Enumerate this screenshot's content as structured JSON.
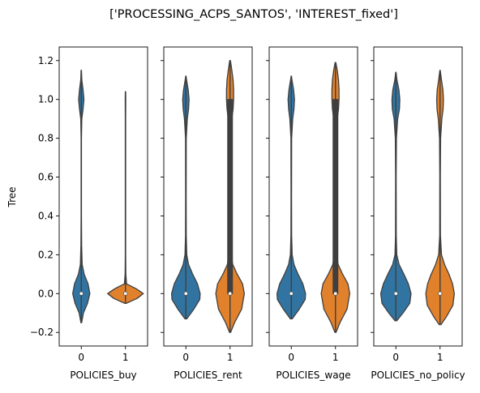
{
  "chart_data": {
    "type": "violin",
    "title": "['PROCESSING_ACPS_SANTOS', 'INTEREST_fixed']",
    "ylabel": "Tree",
    "ylim": [
      -0.27,
      1.27
    ],
    "yticks": [
      -0.2,
      0.0,
      0.2,
      0.4,
      0.6,
      0.8,
      1.0,
      1.2
    ],
    "ytick_labels": [
      "−0.2",
      "0.0",
      "0.2",
      "0.4",
      "0.6",
      "0.8",
      "1.0",
      "1.2"
    ],
    "categories": [
      "0",
      "1"
    ],
    "colors": {
      "0": "#3274a1",
      "1": "#e1812c"
    },
    "panels": [
      {
        "xlabel": "POLICIES_buy",
        "violins": [
          {
            "category": "0",
            "median": 0.0,
            "q1": 0.0,
            "q3": 0.0,
            "extent": [
              -0.15,
              1.15
            ],
            "profile": [
              [
                -0.15,
                0.02
              ],
              [
                -0.1,
                0.12
              ],
              [
                -0.05,
                0.35
              ],
              [
                0.0,
                0.48
              ],
              [
                0.05,
                0.38
              ],
              [
                0.1,
                0.16
              ],
              [
                0.15,
                0.05
              ],
              [
                0.25,
                0.02
              ],
              [
                0.4,
                0.01
              ],
              [
                0.8,
                0.01
              ],
              [
                0.9,
                0.03
              ],
              [
                0.95,
                0.1
              ],
              [
                1.0,
                0.15
              ],
              [
                1.05,
                0.1
              ],
              [
                1.1,
                0.03
              ],
              [
                1.15,
                0.01
              ]
            ]
          },
          {
            "category": "1",
            "median": 0.0,
            "q1": 0.0,
            "q3": 0.0,
            "extent": [
              -0.05,
              1.04
            ],
            "profile": [
              [
                -0.05,
                0.05
              ],
              [
                -0.025,
                0.65
              ],
              [
                0.0,
                1.0
              ],
              [
                0.025,
                0.6
              ],
              [
                0.05,
                0.06
              ],
              [
                0.1,
                0.02
              ],
              [
                0.2,
                0.01
              ],
              [
                0.9,
                0.01
              ],
              [
                1.0,
                0.015
              ],
              [
                1.04,
                0.01
              ]
            ]
          }
        ]
      },
      {
        "xlabel": "POLICIES_rent",
        "violins": [
          {
            "category": "0",
            "median": 0.0,
            "q1": 0.0,
            "q3": 0.0,
            "extent": [
              -0.13,
              1.12
            ],
            "profile": [
              [
                -0.13,
                0.05
              ],
              [
                -0.08,
                0.45
              ],
              [
                -0.03,
                0.78
              ],
              [
                0.0,
                0.8
              ],
              [
                0.05,
                0.65
              ],
              [
                0.1,
                0.38
              ],
              [
                0.15,
                0.15
              ],
              [
                0.2,
                0.05
              ],
              [
                0.3,
                0.02
              ],
              [
                0.5,
                0.015
              ],
              [
                0.8,
                0.02
              ],
              [
                0.9,
                0.08
              ],
              [
                0.95,
                0.15
              ],
              [
                1.0,
                0.18
              ],
              [
                1.05,
                0.13
              ],
              [
                1.1,
                0.04
              ],
              [
                1.12,
                0.01
              ]
            ]
          },
          {
            "category": "1",
            "median": 0.0,
            "q1": 0.0,
            "q3": 1.0,
            "extent": [
              -0.2,
              1.2
            ],
            "profile": [
              [
                -0.2,
                0.03
              ],
              [
                -0.15,
                0.25
              ],
              [
                -0.08,
                0.65
              ],
              [
                0.0,
                0.8
              ],
              [
                0.05,
                0.7
              ],
              [
                0.1,
                0.4
              ],
              [
                0.15,
                0.15
              ],
              [
                0.2,
                0.06
              ],
              [
                0.3,
                0.025
              ],
              [
                0.6,
                0.015
              ],
              [
                0.8,
                0.03
              ],
              [
                0.9,
                0.1
              ],
              [
                0.95,
                0.17
              ],
              [
                1.0,
                0.2
              ],
              [
                1.05,
                0.2
              ],
              [
                1.1,
                0.17
              ],
              [
                1.15,
                0.1
              ],
              [
                1.2,
                0.02
              ]
            ]
          }
        ]
      },
      {
        "xlabel": "POLICIES_wage",
        "violins": [
          {
            "category": "0",
            "median": 0.0,
            "q1": 0.0,
            "q3": 0.0,
            "extent": [
              -0.13,
              1.12
            ],
            "profile": [
              [
                -0.13,
                0.05
              ],
              [
                -0.08,
                0.45
              ],
              [
                -0.03,
                0.78
              ],
              [
                0.0,
                0.8
              ],
              [
                0.05,
                0.65
              ],
              [
                0.1,
                0.38
              ],
              [
                0.15,
                0.15
              ],
              [
                0.2,
                0.05
              ],
              [
                0.3,
                0.02
              ],
              [
                0.5,
                0.015
              ],
              [
                0.8,
                0.02
              ],
              [
                0.9,
                0.08
              ],
              [
                0.95,
                0.15
              ],
              [
                1.0,
                0.18
              ],
              [
                1.05,
                0.13
              ],
              [
                1.1,
                0.04
              ],
              [
                1.12,
                0.01
              ]
            ]
          },
          {
            "category": "1",
            "median": 0.0,
            "q1": 0.0,
            "q3": 1.0,
            "extent": [
              -0.2,
              1.19
            ],
            "profile": [
              [
                -0.2,
                0.03
              ],
              [
                -0.15,
                0.25
              ],
              [
                -0.08,
                0.65
              ],
              [
                0.0,
                0.8
              ],
              [
                0.05,
                0.7
              ],
              [
                0.1,
                0.4
              ],
              [
                0.15,
                0.15
              ],
              [
                0.2,
                0.06
              ],
              [
                0.3,
                0.025
              ],
              [
                0.6,
                0.015
              ],
              [
                0.8,
                0.03
              ],
              [
                0.9,
                0.1
              ],
              [
                0.95,
                0.17
              ],
              [
                1.0,
                0.2
              ],
              [
                1.05,
                0.2
              ],
              [
                1.1,
                0.17
              ],
              [
                1.15,
                0.1
              ],
              [
                1.19,
                0.02
              ]
            ]
          }
        ]
      },
      {
        "xlabel": "POLICIES_no_policy",
        "violins": [
          {
            "category": "0",
            "median": 0.0,
            "q1": 0.0,
            "q3": 0.0,
            "extent": [
              -0.14,
              1.14
            ],
            "profile": [
              [
                -0.14,
                0.05
              ],
              [
                -0.1,
                0.4
              ],
              [
                -0.05,
                0.78
              ],
              [
                0.0,
                0.85
              ],
              [
                0.05,
                0.7
              ],
              [
                0.1,
                0.45
              ],
              [
                0.15,
                0.18
              ],
              [
                0.2,
                0.05
              ],
              [
                0.3,
                0.02
              ],
              [
                0.6,
                0.015
              ],
              [
                0.8,
                0.03
              ],
              [
                0.9,
                0.1
              ],
              [
                0.95,
                0.2
              ],
              [
                1.0,
                0.22
              ],
              [
                1.05,
                0.17
              ],
              [
                1.1,
                0.06
              ],
              [
                1.14,
                0.01
              ]
            ]
          },
          {
            "category": "1",
            "median": 0.0,
            "q1": 0.0,
            "q3": 0.0,
            "extent": [
              -0.16,
              1.15
            ],
            "profile": [
              [
                -0.16,
                0.05
              ],
              [
                -0.12,
                0.35
              ],
              [
                -0.06,
                0.72
              ],
              [
                0.0,
                0.8
              ],
              [
                0.05,
                0.7
              ],
              [
                0.1,
                0.5
              ],
              [
                0.15,
                0.25
              ],
              [
                0.2,
                0.08
              ],
              [
                0.3,
                0.02
              ],
              [
                0.6,
                0.015
              ],
              [
                0.8,
                0.03
              ],
              [
                0.9,
                0.1
              ],
              [
                0.95,
                0.17
              ],
              [
                1.0,
                0.19
              ],
              [
                1.05,
                0.16
              ],
              [
                1.1,
                0.08
              ],
              [
                1.15,
                0.01
              ]
            ]
          }
        ]
      }
    ]
  }
}
